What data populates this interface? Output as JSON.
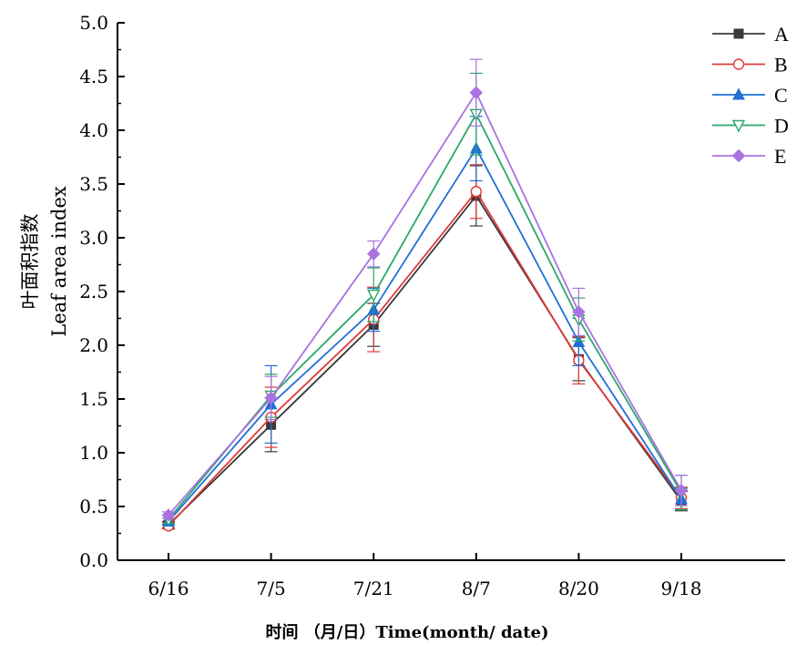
{
  "chart_data": {
    "type": "line",
    "categories": [
      "6/16",
      "7/5",
      "7/21",
      "8/7",
      "8/20",
      "9/18"
    ],
    "ylabel_cn": "叶面积指数",
    "ylabel_en": "Leaf area index",
    "xlabel": "时间 （月/日）Time(month/ date)",
    "ylim": [
      0,
      5
    ],
    "yticks": [
      "0.0",
      "0.5",
      "1.0",
      "1.5",
      "2.0",
      "2.5",
      "3.0",
      "3.5",
      "4.0",
      "4.5",
      "5.0"
    ],
    "legend_position": "top-right",
    "series": [
      {
        "name": "A",
        "color": "#3a3a3a",
        "marker": "square-filled",
        "values": [
          0.33,
          1.26,
          2.19,
          3.39,
          1.87,
          0.55
        ],
        "errors": [
          0.03,
          0.25,
          0.2,
          0.28,
          0.2,
          0.09
        ]
      },
      {
        "name": "B",
        "color": "#e03a3a",
        "marker": "circle-open",
        "values": [
          0.32,
          1.33,
          2.24,
          3.43,
          1.86,
          0.58
        ],
        "errors": [
          0.03,
          0.28,
          0.3,
          0.25,
          0.22,
          0.1
        ]
      },
      {
        "name": "C",
        "color": "#1f6fd6",
        "marker": "triangle-up-filled",
        "values": [
          0.36,
          1.45,
          2.33,
          3.83,
          2.03,
          0.57
        ],
        "errors": [
          0.03,
          0.36,
          0.2,
          0.3,
          0.22,
          0.1
        ]
      },
      {
        "name": "D",
        "color": "#2aa866",
        "marker": "triangle-down-open",
        "values": [
          0.38,
          1.53,
          2.47,
          4.15,
          2.24,
          0.63
        ],
        "errors": [
          0.04,
          0.2,
          0.25,
          0.38,
          0.2,
          0.16
        ]
      },
      {
        "name": "E",
        "color": "#a972e0",
        "marker": "diamond-filled",
        "values": [
          0.42,
          1.51,
          2.85,
          4.35,
          2.31,
          0.65
        ],
        "errors": [
          0.03,
          0.2,
          0.12,
          0.31,
          0.22,
          0.14
        ]
      }
    ]
  }
}
